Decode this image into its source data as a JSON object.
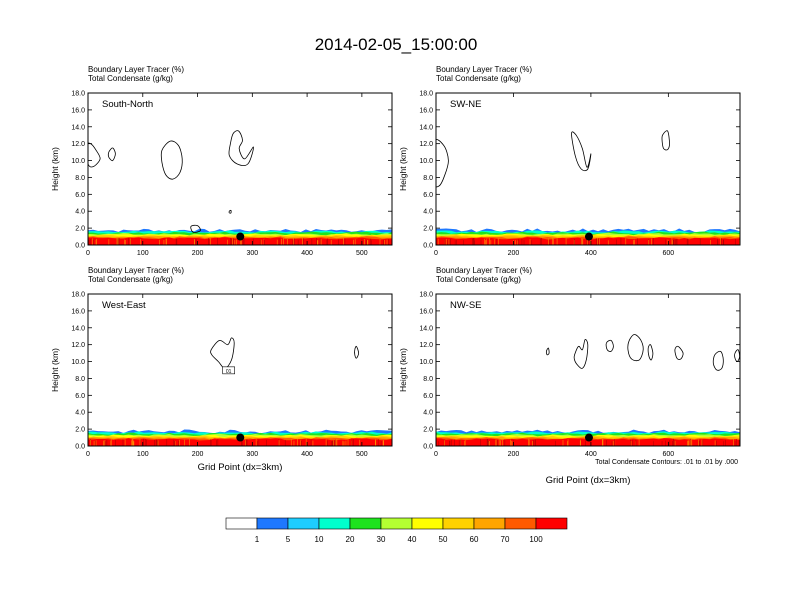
{
  "figure": {
    "title": "2014-02-05_15:00:00",
    "var_label_1": "Boundary Layer Tracer   (%)",
    "var_label_2": "Total Condensate   (g/kg)",
    "xlabel": "Grid Point (dx=3km)",
    "ylabel": "Height (km)",
    "contour_note": "Total Condensate Contours: .01 to .01 by .000",
    "contour_box_label": "01"
  },
  "colorbar": {
    "colors": [
      "#ffffff",
      "#1e78ff",
      "#1ecdff",
      "#00ffcd",
      "#1ee31e",
      "#b4ff32",
      "#ffff00",
      "#ffd200",
      "#ffa500",
      "#ff5a00",
      "#ff0000"
    ],
    "labels": [
      "1",
      "5",
      "10",
      "20",
      "30",
      "40",
      "50",
      "60",
      "70",
      "100"
    ]
  },
  "chart_data": [
    {
      "type": "heatmap",
      "panel_label": "South-North",
      "xlabel": "",
      "ylabel": "Height (km)",
      "xlim": [
        0,
        555
      ],
      "ylim": [
        0,
        18
      ],
      "xticks": [
        0,
        100,
        200,
        300,
        400,
        500
      ],
      "yticks": [
        "0.0",
        "2.0",
        "4.0",
        "6.0",
        "8.0",
        "10.0",
        "12.0",
        "14.0",
        "16.0",
        "18.0"
      ],
      "point_marker": [
        278,
        1.0
      ],
      "contours": [
        [
          [
            -5,
            11.8
          ],
          [
            5,
            12.0
          ],
          [
            15,
            11.2
          ],
          [
            22,
            10.2
          ],
          [
            10,
            9.3
          ],
          [
            0,
            9.6
          ]
        ],
        [
          [
            38,
            11.0
          ],
          [
            45,
            11.5
          ],
          [
            50,
            10.8
          ],
          [
            45,
            10.0
          ],
          [
            38,
            10.4
          ]
        ],
        [
          [
            135,
            11.2
          ],
          [
            150,
            12.3
          ],
          [
            165,
            11.8
          ],
          [
            172,
            10.2
          ],
          [
            168,
            8.6
          ],
          [
            155,
            7.8
          ],
          [
            142,
            8.3
          ],
          [
            135,
            9.8
          ]
        ],
        [
          [
            265,
            13.2
          ],
          [
            275,
            13.5
          ],
          [
            282,
            12.4
          ],
          [
            276,
            11.4
          ],
          [
            286,
            10.2
          ],
          [
            302,
            11.6
          ],
          [
            292,
            9.6
          ],
          [
            272,
            9.6
          ],
          [
            258,
            10.6
          ],
          [
            260,
            12.0
          ]
        ],
        [
          [
            188,
            2.2
          ],
          [
            200,
            2.3
          ],
          [
            205,
            1.7
          ],
          [
            192,
            1.5
          ]
        ],
        [
          [
            258,
            4.0
          ],
          [
            261,
            4.1
          ],
          [
            261,
            3.8
          ],
          [
            258,
            3.8
          ]
        ]
      ]
    },
    {
      "type": "heatmap",
      "panel_label": "SW-NE",
      "xlabel": "",
      "ylabel": "Height (km)",
      "xlim": [
        0,
        785
      ],
      "ylim": [
        0,
        18
      ],
      "xticks": [
        0,
        200,
        400,
        600
      ],
      "yticks": [
        "0.0",
        "2.0",
        "4.0",
        "6.0",
        "8.0",
        "10.0",
        "12.0",
        "14.0",
        "16.0",
        "18.0"
      ],
      "point_marker": [
        395,
        1.0
      ],
      "contours": [
        [
          [
            -5,
            12.2
          ],
          [
            20,
            11.8
          ],
          [
            32,
            10.0
          ],
          [
            22,
            8.2
          ],
          [
            8,
            7.0
          ],
          [
            -5,
            7.5
          ]
        ],
        [
          [
            350,
            13.2
          ],
          [
            362,
            13.0
          ],
          [
            378,
            11.4
          ],
          [
            390,
            9.2
          ],
          [
            400,
            10.8
          ],
          [
            392,
            9.0
          ],
          [
            375,
            9.0
          ],
          [
            360,
            10.5
          ]
        ],
        [
          [
            585,
            13.0
          ],
          [
            598,
            13.5
          ],
          [
            603,
            12.0
          ],
          [
            598,
            11.3
          ],
          [
            588,
            11.4
          ],
          [
            584,
            12.2
          ]
        ]
      ]
    },
    {
      "type": "heatmap",
      "panel_label": "West-East",
      "xlabel": "",
      "ylabel": "Height (km)",
      "xlim": [
        0,
        555
      ],
      "ylim": [
        0,
        18
      ],
      "xticks": [
        0,
        100,
        200,
        300,
        400,
        500
      ],
      "yticks": [
        "0.0",
        "2.0",
        "4.0",
        "6.0",
        "8.0",
        "10.0",
        "12.0",
        "14.0",
        "16.0",
        "18.0"
      ],
      "point_marker": [
        278,
        1.0
      ],
      "contours": [
        [
          [
            225,
            11.4
          ],
          [
            240,
            12.5
          ],
          [
            255,
            12.0
          ],
          [
            262,
            12.8
          ],
          [
            267,
            12.2
          ],
          [
            262,
            10.2
          ],
          [
            250,
            9.2
          ],
          [
            238,
            10.0
          ],
          [
            226,
            10.8
          ]
        ],
        [
          [
            487,
            11.4
          ],
          [
            490,
            11.8
          ],
          [
            494,
            11.0
          ],
          [
            490,
            10.4
          ],
          [
            487,
            10.8
          ]
        ]
      ]
    },
    {
      "type": "heatmap",
      "panel_label": "NW-SE",
      "xlabel": "Grid Point (dx=3km)",
      "ylabel": "Height (km)",
      "xlim": [
        0,
        785
      ],
      "ylim": [
        0,
        18
      ],
      "xticks": [
        0,
        200,
        400,
        600
      ],
      "yticks": [
        "0.0",
        "2.0",
        "4.0",
        "6.0",
        "8.0",
        "10.0",
        "12.0",
        "14.0",
        "16.0",
        "18.0"
      ],
      "point_marker": [
        395,
        1.0
      ],
      "contours": [
        [
          [
            285,
            11.2
          ],
          [
            290,
            11.6
          ],
          [
            292,
            11.0
          ],
          [
            287,
            10.8
          ]
        ],
        [
          [
            358,
            10.8
          ],
          [
            368,
            11.8
          ],
          [
            378,
            11.4
          ],
          [
            385,
            12.6
          ],
          [
            392,
            12.0
          ],
          [
            388,
            10.2
          ],
          [
            378,
            9.2
          ],
          [
            365,
            9.6
          ],
          [
            357,
            10.3
          ]
        ],
        [
          [
            440,
            12.2
          ],
          [
            452,
            12.5
          ],
          [
            458,
            11.8
          ],
          [
            452,
            11.2
          ],
          [
            442,
            11.4
          ]
        ],
        [
          [
            498,
            12.4
          ],
          [
            512,
            13.2
          ],
          [
            528,
            12.6
          ],
          [
            535,
            11.4
          ],
          [
            525,
            10.2
          ],
          [
            505,
            10.3
          ],
          [
            496,
            11.3
          ]
        ],
        [
          [
            548,
            11.6
          ],
          [
            554,
            12.0
          ],
          [
            560,
            11.0
          ],
          [
            556,
            10.2
          ],
          [
            550,
            10.6
          ]
        ],
        [
          [
            617,
            11.4
          ],
          [
            625,
            11.8
          ],
          [
            638,
            11.0
          ],
          [
            632,
            10.3
          ],
          [
            622,
            10.4
          ]
        ],
        [
          [
            720,
            10.8
          ],
          [
            735,
            11.2
          ],
          [
            742,
            10.2
          ],
          [
            738,
            9.2
          ],
          [
            725,
            9.0
          ],
          [
            716,
            9.8
          ]
        ],
        [
          [
            772,
            11.0
          ],
          [
            780,
            11.4
          ],
          [
            784,
            10.6
          ],
          [
            778,
            10.0
          ],
          [
            772,
            10.4
          ]
        ]
      ]
    }
  ]
}
